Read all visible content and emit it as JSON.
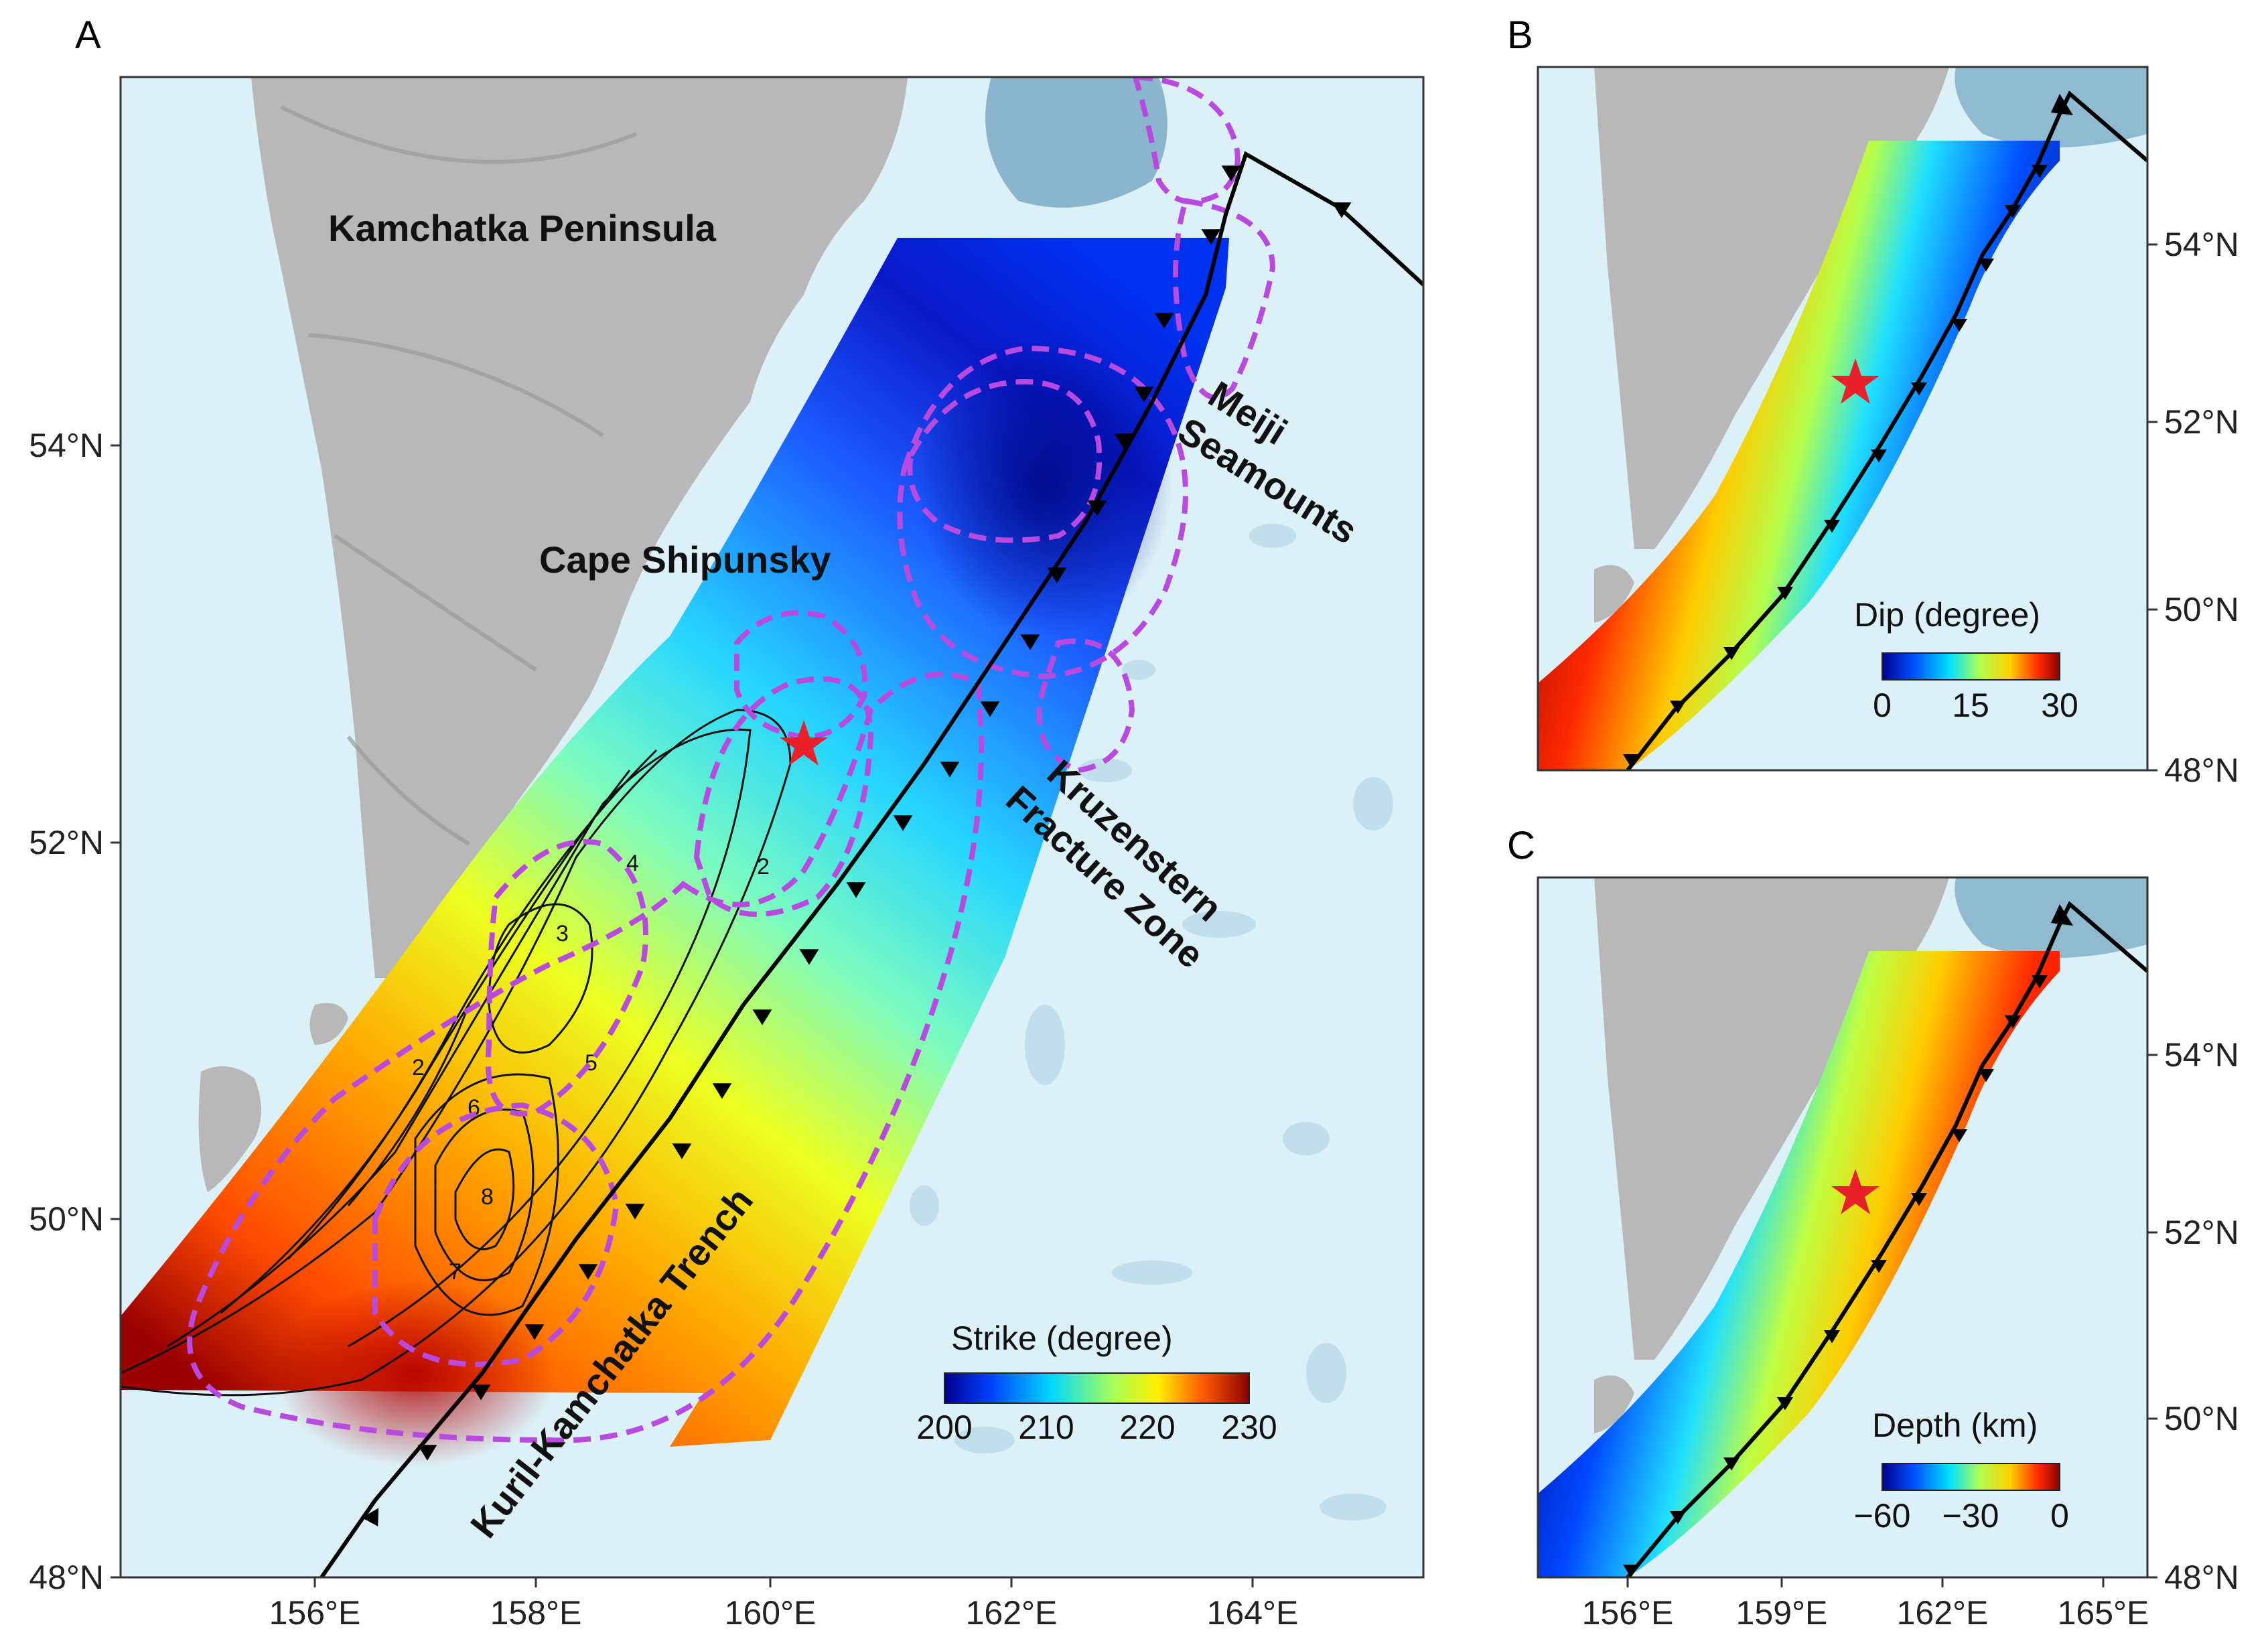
{
  "panels": {
    "A": {
      "letter": "A",
      "x_ticks": [
        "156°E",
        "158°E",
        "160°E",
        "162°E",
        "164°E"
      ],
      "y_ticks": [
        "48°N",
        "50°N",
        "52°N",
        "54°N"
      ],
      "places": {
        "kamchatka": "Kamchatka Peninsula",
        "shipunsky": "Cape Shipunsky",
        "meiji_1": "Meiji",
        "meiji_2": "Seamounts",
        "kruz_1": "Kruzenstern",
        "kruz_2": "Fracture Zone",
        "trench": "Kuril-Kamchatka Trench"
      },
      "colorbar": {
        "title": "Strike (degree)",
        "ticks": [
          "200",
          "210",
          "220",
          "230"
        ]
      },
      "contour_labels": [
        "2",
        "2",
        "3",
        "4",
        "5",
        "6",
        "7",
        "8"
      ]
    },
    "B": {
      "letter": "B",
      "y_ticks": [
        "48°N",
        "50°N",
        "52°N",
        "54°N"
      ],
      "colorbar": {
        "title": "Dip (degree)",
        "ticks": [
          "0",
          "15",
          "30"
        ]
      }
    },
    "C": {
      "letter": "C",
      "x_ticks": [
        "156°E",
        "159°E",
        "162°E",
        "165°E"
      ],
      "y_ticks": [
        "48°N",
        "50°N",
        "52°N",
        "54°N"
      ],
      "colorbar": {
        "title": "Depth (km)",
        "ticks": [
          "−60",
          "−30",
          "0"
        ]
      }
    }
  },
  "colors": {
    "ocean": "#dcf0f8",
    "land": "#b5b5b5",
    "trench": "#000000",
    "contour_dashed": "#b84ae0",
    "epicenter_star": "#e8202a"
  },
  "icons": {
    "epicenter": "star-icon",
    "trench_teeth": "triangle-icon"
  }
}
